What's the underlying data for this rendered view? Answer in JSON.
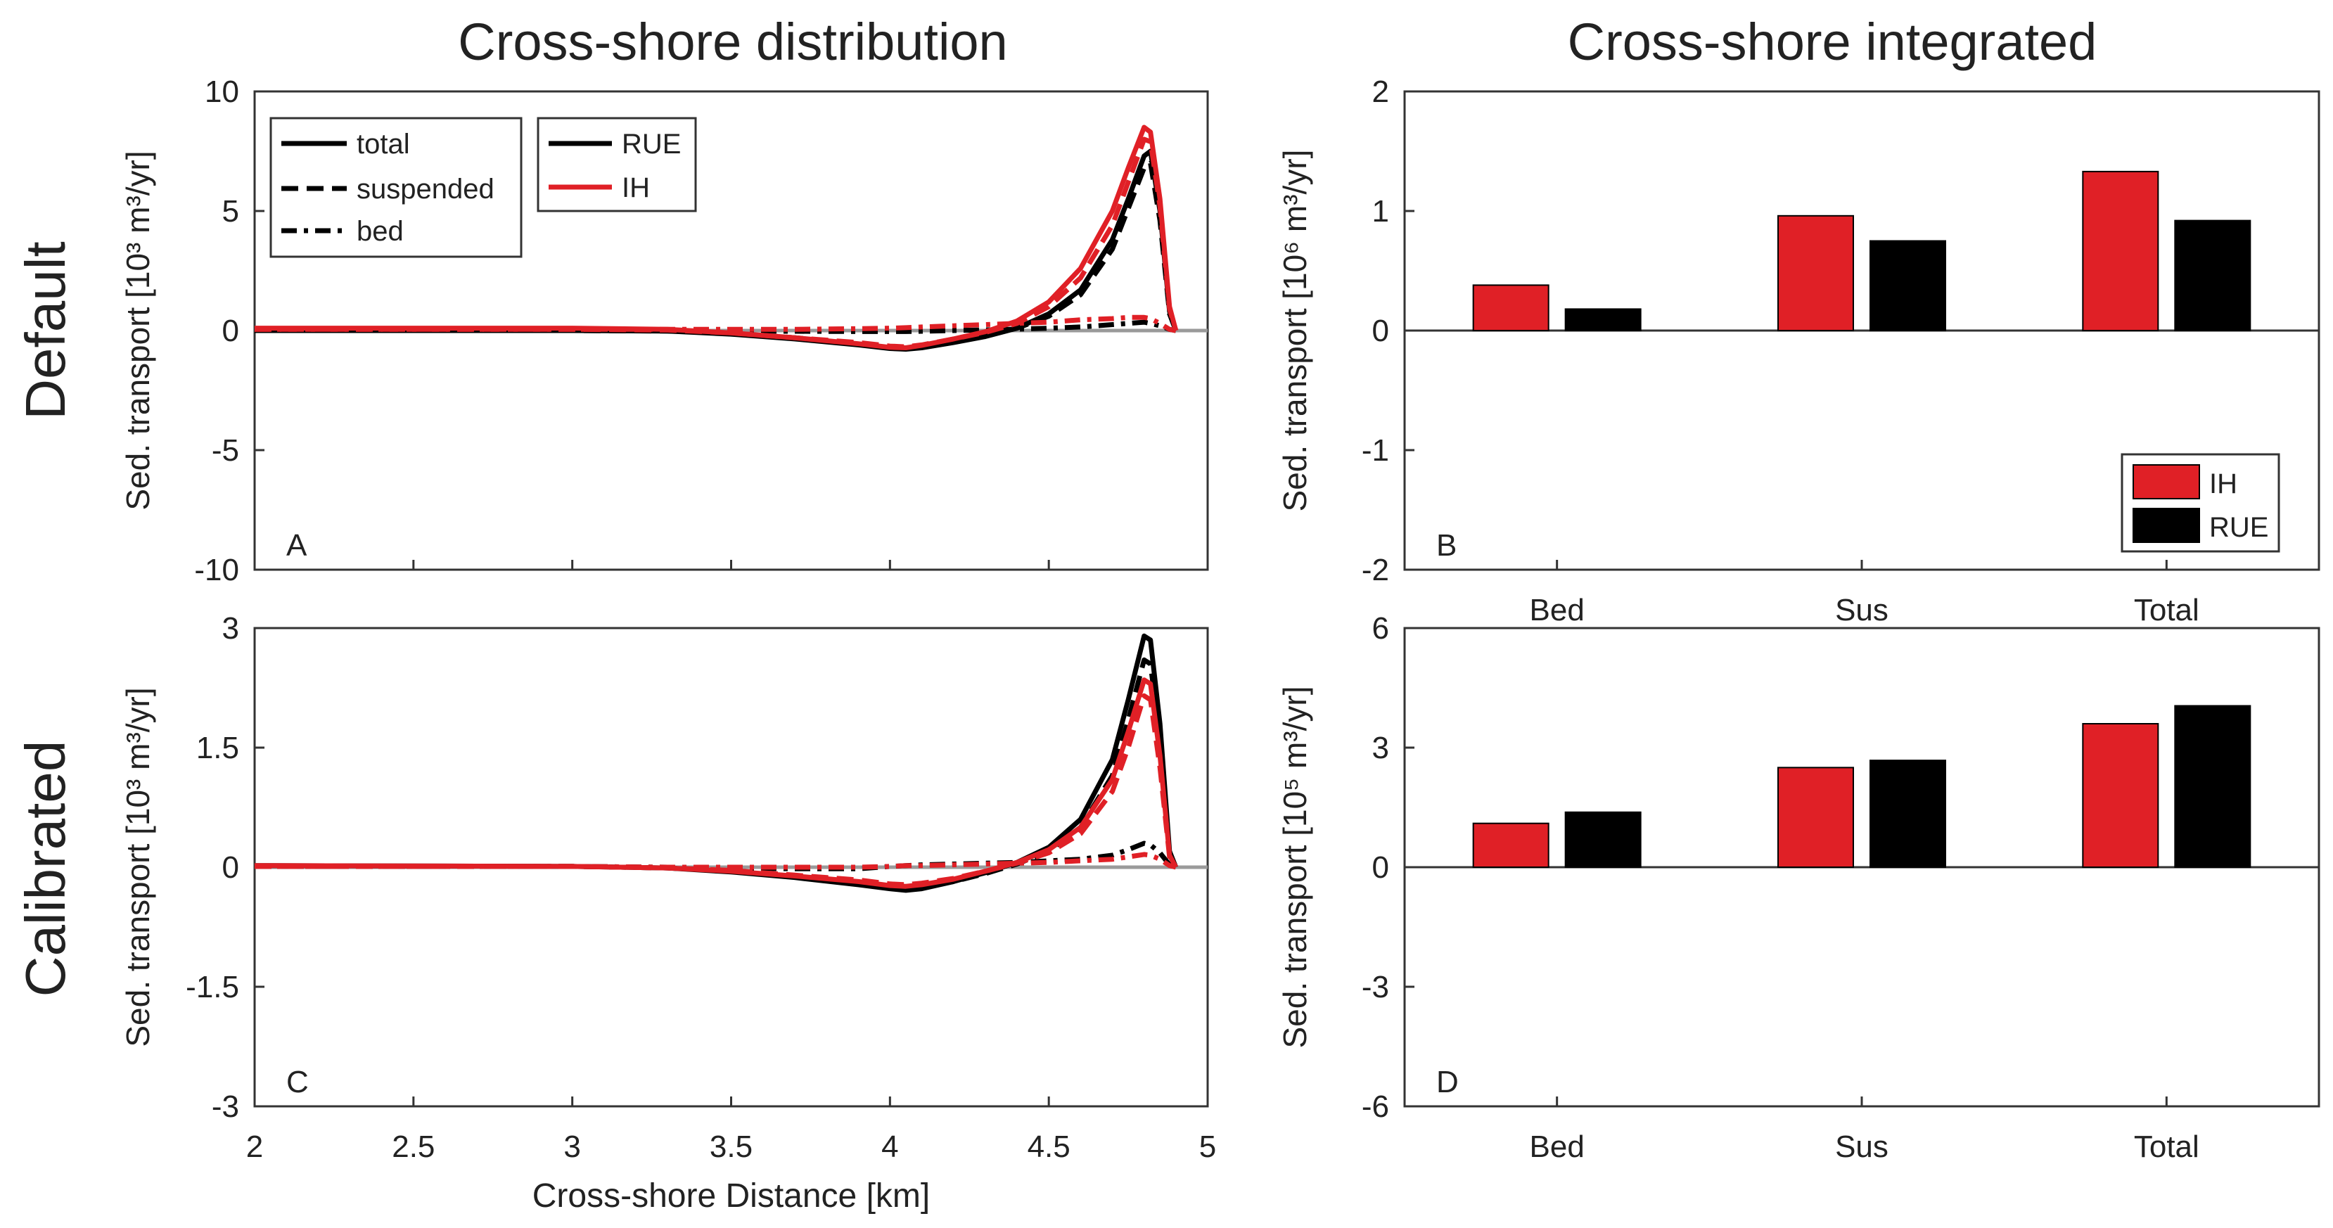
{
  "figure": {
    "col_titles": [
      "Cross-shore distribution",
      "Cross-shore integrated"
    ],
    "row_labels": [
      "Default",
      "Calibrated"
    ]
  },
  "legend_linestyle": {
    "items": [
      {
        "label": "total",
        "style": "solid"
      },
      {
        "label": "suspended",
        "style": "dashed"
      },
      {
        "label": "bed",
        "style": "dashdot"
      }
    ]
  },
  "legend_model": {
    "items": [
      {
        "label": "RUE",
        "color": "#000000"
      },
      {
        "label": "IH",
        "color": "#e02026"
      }
    ]
  },
  "legend_bar": {
    "items": [
      {
        "label": "IH",
        "color": "#e02026"
      },
      {
        "label": "RUE",
        "color": "#000000"
      }
    ]
  },
  "chart_data": [
    {
      "id": "A",
      "panel_label": "A",
      "type": "line",
      "title": "Cross-shore distribution",
      "xlabel": "",
      "ylabel": "Sed. transport [10³ m³/yr]",
      "xlim": [
        2,
        5
      ],
      "ylim": [
        -10,
        10
      ],
      "yticks": [
        10,
        5,
        0,
        -5,
        -10
      ],
      "yticklabels": [
        "10",
        "5",
        "0",
        "-5",
        "-10"
      ],
      "x": [
        2.0,
        3.0,
        3.3,
        3.5,
        3.7,
        3.9,
        4.0,
        4.05,
        4.1,
        4.2,
        4.3,
        4.4,
        4.5,
        4.6,
        4.7,
        4.75,
        4.8,
        4.82,
        4.85,
        4.88,
        4.9
      ],
      "series": [
        {
          "name": "RUE total",
          "model": "RUE",
          "component": "total",
          "color": "#000000",
          "style": "solid",
          "values": [
            0,
            0,
            -0.02,
            -0.15,
            -0.35,
            -0.6,
            -0.75,
            -0.78,
            -0.72,
            -0.5,
            -0.25,
            0.1,
            0.7,
            1.7,
            3.8,
            5.5,
            7.3,
            7.5,
            5.0,
            0.8,
            0
          ]
        },
        {
          "name": "RUE suspended",
          "model": "RUE",
          "component": "suspended",
          "color": "#000000",
          "style": "dashed",
          "values": [
            0,
            0,
            -0.02,
            -0.12,
            -0.3,
            -0.55,
            -0.7,
            -0.72,
            -0.66,
            -0.45,
            -0.2,
            0.1,
            0.6,
            1.5,
            3.4,
            5.1,
            6.8,
            7.0,
            4.6,
            0.7,
            0
          ]
        },
        {
          "name": "RUE bed",
          "model": "RUE",
          "component": "bed",
          "color": "#000000",
          "style": "dashdot",
          "values": [
            0,
            0,
            0,
            -0.02,
            -0.03,
            -0.04,
            -0.04,
            -0.04,
            -0.03,
            0,
            0.03,
            0.06,
            0.1,
            0.15,
            0.25,
            0.3,
            0.35,
            0.3,
            0.2,
            0.05,
            0
          ]
        },
        {
          "name": "IH total",
          "model": "IH",
          "component": "total",
          "color": "#e02026",
          "style": "solid",
          "values": [
            0.1,
            0.1,
            0.05,
            -0.1,
            -0.3,
            -0.55,
            -0.7,
            -0.72,
            -0.62,
            -0.35,
            -0.05,
            0.4,
            1.2,
            2.6,
            5.0,
            6.8,
            8.5,
            8.3,
            5.5,
            1.0,
            0
          ]
        },
        {
          "name": "IH suspended",
          "model": "IH",
          "component": "suspended",
          "color": "#e02026",
          "style": "dashed",
          "values": [
            0.05,
            0.05,
            0.02,
            -0.1,
            -0.3,
            -0.5,
            -0.65,
            -0.68,
            -0.6,
            -0.35,
            -0.08,
            0.3,
            1.0,
            2.2,
            4.4,
            6.2,
            8.0,
            7.9,
            5.2,
            0.9,
            0
          ]
        },
        {
          "name": "IH bed",
          "model": "IH",
          "component": "bed",
          "color": "#e02026",
          "style": "dashdot",
          "values": [
            0.05,
            0.05,
            0.05,
            0.05,
            0.05,
            0.08,
            0.1,
            0.12,
            0.15,
            0.2,
            0.25,
            0.3,
            0.35,
            0.45,
            0.5,
            0.55,
            0.55,
            0.5,
            0.3,
            0.05,
            0
          ]
        }
      ]
    },
    {
      "id": "B",
      "panel_label": "B",
      "type": "bar",
      "title": "Cross-shore integrated",
      "ylabel": "Sed. transport [10⁶ m³/yr]",
      "ylim": [
        -2,
        2
      ],
      "yticks": [
        2,
        1,
        0,
        -1,
        -2
      ],
      "yticklabels": [
        "2",
        "1",
        "0",
        "-1",
        "-2"
      ],
      "categories": [
        "Bed",
        "Sus",
        "Total"
      ],
      "series": [
        {
          "name": "IH",
          "color": "#e02026",
          "values": [
            0.38,
            0.96,
            1.33
          ]
        },
        {
          "name": "RUE",
          "color": "#000000",
          "values": [
            0.18,
            0.75,
            0.92
          ]
        }
      ]
    },
    {
      "id": "C",
      "panel_label": "C",
      "type": "line",
      "xlabel": "Cross-shore Distance [km]",
      "ylabel": "Sed. transport [10³ m³/yr]",
      "xlim": [
        2,
        5
      ],
      "ylim": [
        -3,
        3
      ],
      "xticks": [
        2,
        2.5,
        3,
        3.5,
        4,
        4.5,
        5
      ],
      "xticklabels": [
        "2",
        "2.5",
        "3",
        "3.5",
        "4",
        "4.5",
        "5"
      ],
      "yticks": [
        3,
        1.5,
        0,
        -1.5,
        -3
      ],
      "yticklabels": [
        "3",
        "1.5",
        "0",
        "-1.5",
        "-3"
      ],
      "x": [
        2.0,
        3.0,
        3.3,
        3.5,
        3.7,
        3.9,
        4.0,
        4.05,
        4.1,
        4.2,
        4.3,
        4.4,
        4.5,
        4.6,
        4.7,
        4.75,
        4.8,
        4.82,
        4.85,
        4.88,
        4.9
      ],
      "series": [
        {
          "name": "RUE total",
          "model": "RUE",
          "component": "total",
          "color": "#000000",
          "style": "solid",
          "values": [
            0.02,
            0.01,
            -0.01,
            -0.06,
            -0.13,
            -0.22,
            -0.27,
            -0.29,
            -0.27,
            -0.18,
            -0.07,
            0.06,
            0.25,
            0.6,
            1.35,
            2.1,
            2.9,
            2.85,
            1.8,
            0.2,
            0
          ]
        },
        {
          "name": "RUE suspended",
          "model": "RUE",
          "component": "suspended",
          "color": "#000000",
          "style": "dashed",
          "values": [
            0.01,
            0.01,
            -0.01,
            -0.05,
            -0.11,
            -0.19,
            -0.24,
            -0.26,
            -0.25,
            -0.18,
            -0.08,
            0.04,
            0.2,
            0.5,
            1.15,
            1.85,
            2.6,
            2.55,
            1.6,
            0.18,
            0
          ]
        },
        {
          "name": "RUE bed",
          "model": "RUE",
          "component": "bed",
          "color": "#000000",
          "style": "dashdot",
          "values": [
            0.01,
            0.01,
            0,
            -0.01,
            -0.02,
            -0.02,
            0.01,
            0.02,
            0.03,
            0.04,
            0.05,
            0.06,
            0.08,
            0.1,
            0.15,
            0.22,
            0.3,
            0.28,
            0.18,
            0.03,
            0
          ]
        },
        {
          "name": "IH total",
          "model": "IH",
          "component": "total",
          "color": "#e02026",
          "style": "solid",
          "values": [
            0.02,
            0.01,
            -0.01,
            -0.05,
            -0.11,
            -0.18,
            -0.23,
            -0.24,
            -0.22,
            -0.15,
            -0.05,
            0.06,
            0.22,
            0.5,
            1.1,
            1.7,
            2.35,
            2.3,
            1.4,
            0.15,
            0
          ]
        },
        {
          "name": "IH suspended",
          "model": "IH",
          "component": "suspended",
          "color": "#e02026",
          "style": "dashed",
          "values": [
            0.01,
            0.01,
            -0.01,
            -0.04,
            -0.1,
            -0.16,
            -0.21,
            -0.22,
            -0.2,
            -0.14,
            -0.05,
            0.05,
            0.18,
            0.42,
            0.95,
            1.5,
            2.15,
            2.1,
            1.25,
            0.13,
            0
          ]
        },
        {
          "name": "IH bed",
          "model": "IH",
          "component": "bed",
          "color": "#e02026",
          "style": "dashdot",
          "values": [
            0.01,
            0.01,
            0,
            0,
            0,
            0,
            0.01,
            0.02,
            0.02,
            0.03,
            0.04,
            0.05,
            0.06,
            0.08,
            0.1,
            0.13,
            0.16,
            0.15,
            0.1,
            0.02,
            0
          ]
        }
      ]
    },
    {
      "id": "D",
      "panel_label": "D",
      "type": "bar",
      "ylabel": "Sed. transport [10⁵ m³/yr]",
      "ylim": [
        -6,
        6
      ],
      "yticks": [
        6,
        3,
        0,
        -3,
        -6
      ],
      "yticklabels": [
        "6",
        "3",
        "0",
        "-3",
        "-6"
      ],
      "categories": [
        "Bed",
        "Sus",
        "Total"
      ],
      "series": [
        {
          "name": "IH",
          "color": "#e02026",
          "values": [
            1.1,
            2.5,
            3.6
          ]
        },
        {
          "name": "RUE",
          "color": "#000000",
          "values": [
            1.38,
            2.68,
            4.05
          ]
        }
      ]
    }
  ]
}
